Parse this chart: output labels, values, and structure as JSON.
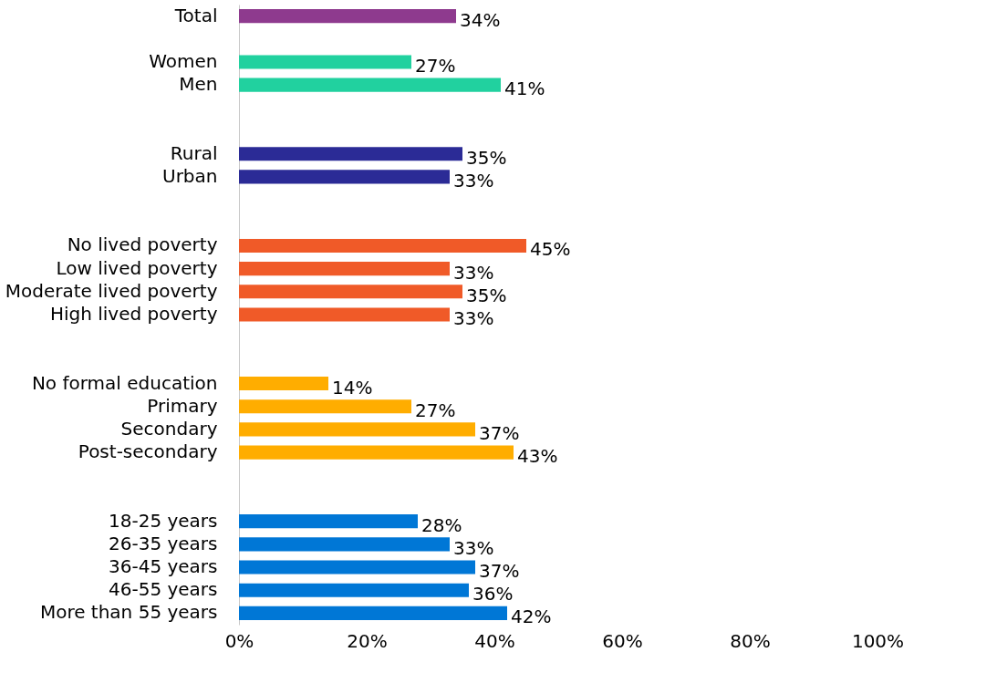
{
  "chart_data": {
    "type": "bar",
    "orientation": "horizontal",
    "categories": [
      "Total",
      null,
      "Women",
      "Men",
      null,
      null,
      "Rural",
      "Urban",
      null,
      null,
      "No lived poverty",
      "Low lived poverty",
      "Moderate lived poverty",
      "High lived poverty",
      null,
      null,
      "No formal education",
      "Primary",
      "Secondary",
      "Post-secondary",
      null,
      null,
      "18-25 years",
      "26-35 years",
      "36-45 years",
      "46-55 years",
      "More than 55 years"
    ],
    "values": [
      34,
      null,
      27,
      41,
      null,
      null,
      35,
      33,
      null,
      null,
      45,
      33,
      35,
      33,
      null,
      null,
      14,
      27,
      37,
      43,
      null,
      null,
      28,
      33,
      37,
      36,
      42
    ],
    "value_labels": [
      "34%",
      null,
      "27%",
      "41%",
      null,
      null,
      "35%",
      "33%",
      null,
      null,
      "45%",
      "33%",
      "35%",
      "33%",
      null,
      null,
      "14%",
      "27%",
      "37%",
      "43%",
      null,
      null,
      "28%",
      "33%",
      "37%",
      "36%",
      "42%"
    ],
    "colors": [
      "#8e3a8e",
      null,
      "#21d19f",
      "#21d19f",
      null,
      null,
      "#2b2b96",
      "#2b2b96",
      null,
      null,
      "#f05a28",
      "#f05a28",
      "#f05a28",
      "#f05a28",
      null,
      null,
      "#ffad00",
      "#ffad00",
      "#ffad00",
      "#ffad00",
      null,
      null,
      "#0077d6",
      "#0077d6",
      "#0077d6",
      "#0077d6",
      "#0077d6"
    ],
    "xlim": [
      0,
      100
    ],
    "xticks": [
      {
        "value": 0,
        "label": "0%"
      },
      {
        "value": 20,
        "label": "20%"
      },
      {
        "value": 40,
        "label": "40%"
      },
      {
        "value": 60,
        "label": "60%"
      },
      {
        "value": 80,
        "label": "80%"
      },
      {
        "value": 100,
        "label": "100%"
      }
    ],
    "grid": false
  }
}
